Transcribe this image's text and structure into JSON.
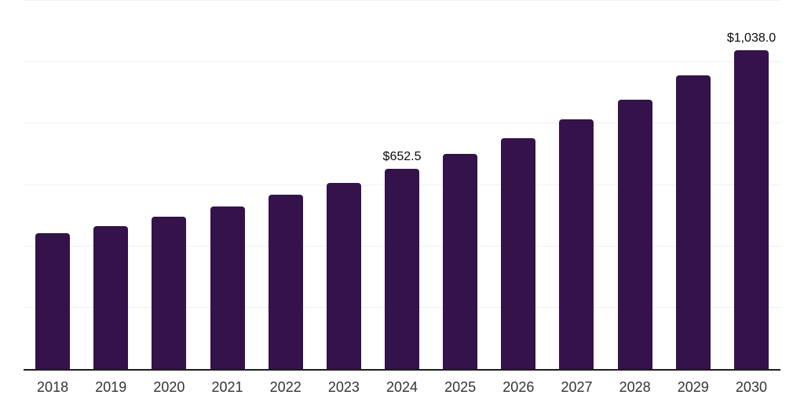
{
  "chart_data": {
    "type": "bar",
    "title": "",
    "xlabel": "",
    "ylabel": "",
    "categories": [
      "2018",
      "2019",
      "2020",
      "2021",
      "2022",
      "2023",
      "2024",
      "2025",
      "2026",
      "2027",
      "2028",
      "2029",
      "2030"
    ],
    "values": [
      442.5,
      466.5,
      496.0,
      528.5,
      567.0,
      607.0,
      652.5,
      701.0,
      753.0,
      814.0,
      878.0,
      957.0,
      1038.0
    ],
    "value_labels": {
      "2024": "$652.5",
      "2030": "$1,038.0"
    },
    "ylim": [
      0,
      1200
    ],
    "gridline_step": 200,
    "grid": true,
    "y_axis_tick_labels_visible": false,
    "legend_position": "none",
    "colors": {
      "bar": "#34124a",
      "gridline": "#f0f0f0",
      "axis_line": "#1c1c1c",
      "tick_label": "#333333",
      "value_label": "#0a0a0a",
      "background": "#ffffff"
    }
  }
}
